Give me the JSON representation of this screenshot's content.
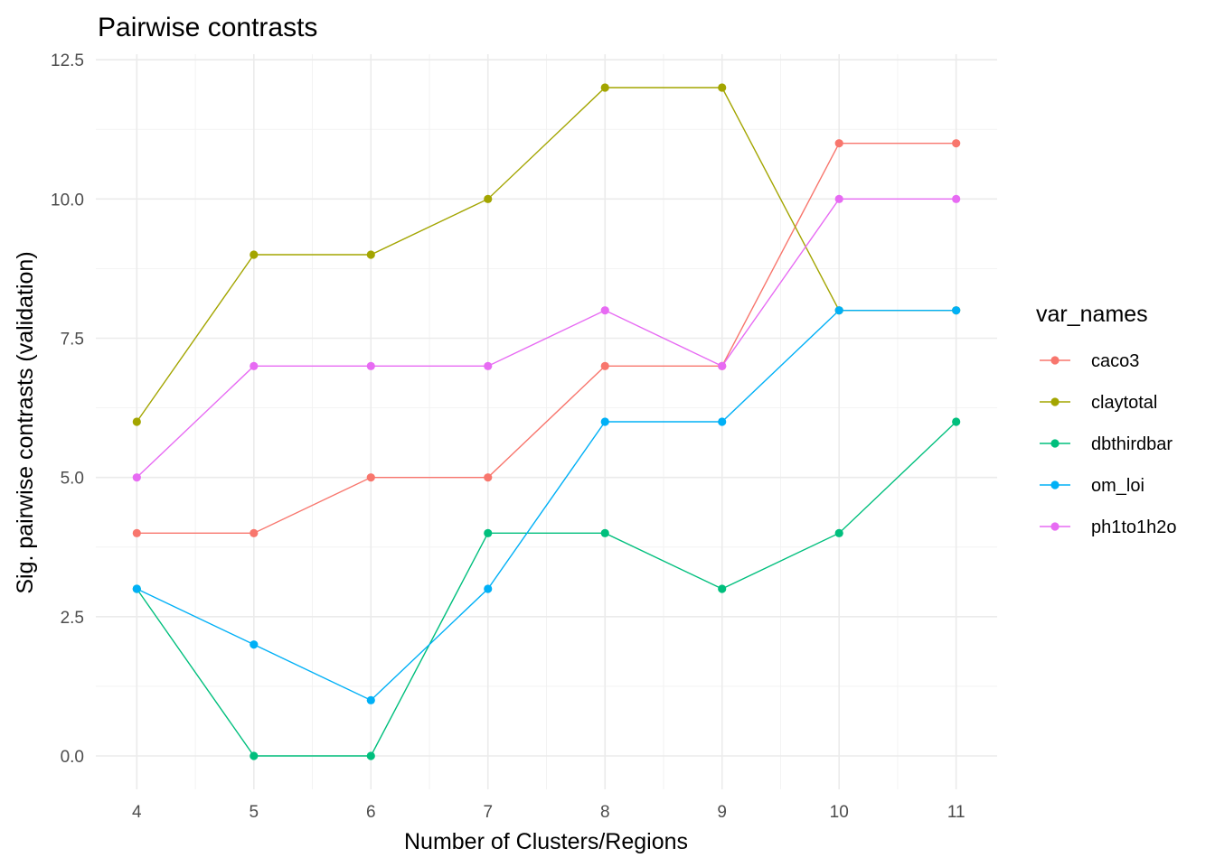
{
  "chart_data": {
    "type": "line",
    "title": "Pairwise contrasts",
    "xlabel": "Number of Clusters/Regions",
    "ylabel": "Sig. pairwise contrasts (validation)",
    "x": [
      4,
      5,
      6,
      7,
      8,
      9,
      10,
      11
    ],
    "x_tick_labels": [
      "4",
      "5",
      "6",
      "7",
      "8",
      "9",
      "10",
      "11"
    ],
    "y_ticks": [
      0.0,
      2.5,
      5.0,
      7.5,
      10.0,
      12.5
    ],
    "y_tick_labels": [
      "0.0",
      "2.5",
      "5.0",
      "7.5",
      "10.0",
      "12.5"
    ],
    "xlim": [
      3.65,
      11.35
    ],
    "ylim": [
      -0.6,
      12.6
    ],
    "grid": true,
    "legend_title": "var_names",
    "legend_position": "right",
    "series": [
      {
        "name": "caco3",
        "color": "#F8766D",
        "values": [
          4,
          4,
          5,
          5,
          7,
          7,
          11,
          11
        ]
      },
      {
        "name": "claytotal",
        "color": "#A3A500",
        "values": [
          6,
          9,
          9,
          10,
          12,
          12,
          8,
          8
        ]
      },
      {
        "name": "dbthirdbar",
        "color": "#00BF7D",
        "values": [
          3,
          0,
          0,
          4,
          4,
          3,
          4,
          6
        ]
      },
      {
        "name": "om_loi",
        "color": "#00B0F6",
        "values": [
          3,
          2,
          1,
          3,
          6,
          6,
          8,
          8
        ]
      },
      {
        "name": "ph1to1h2o",
        "color": "#E76BF3",
        "values": [
          5,
          7,
          7,
          7,
          8,
          7,
          10,
          10
        ]
      }
    ]
  }
}
